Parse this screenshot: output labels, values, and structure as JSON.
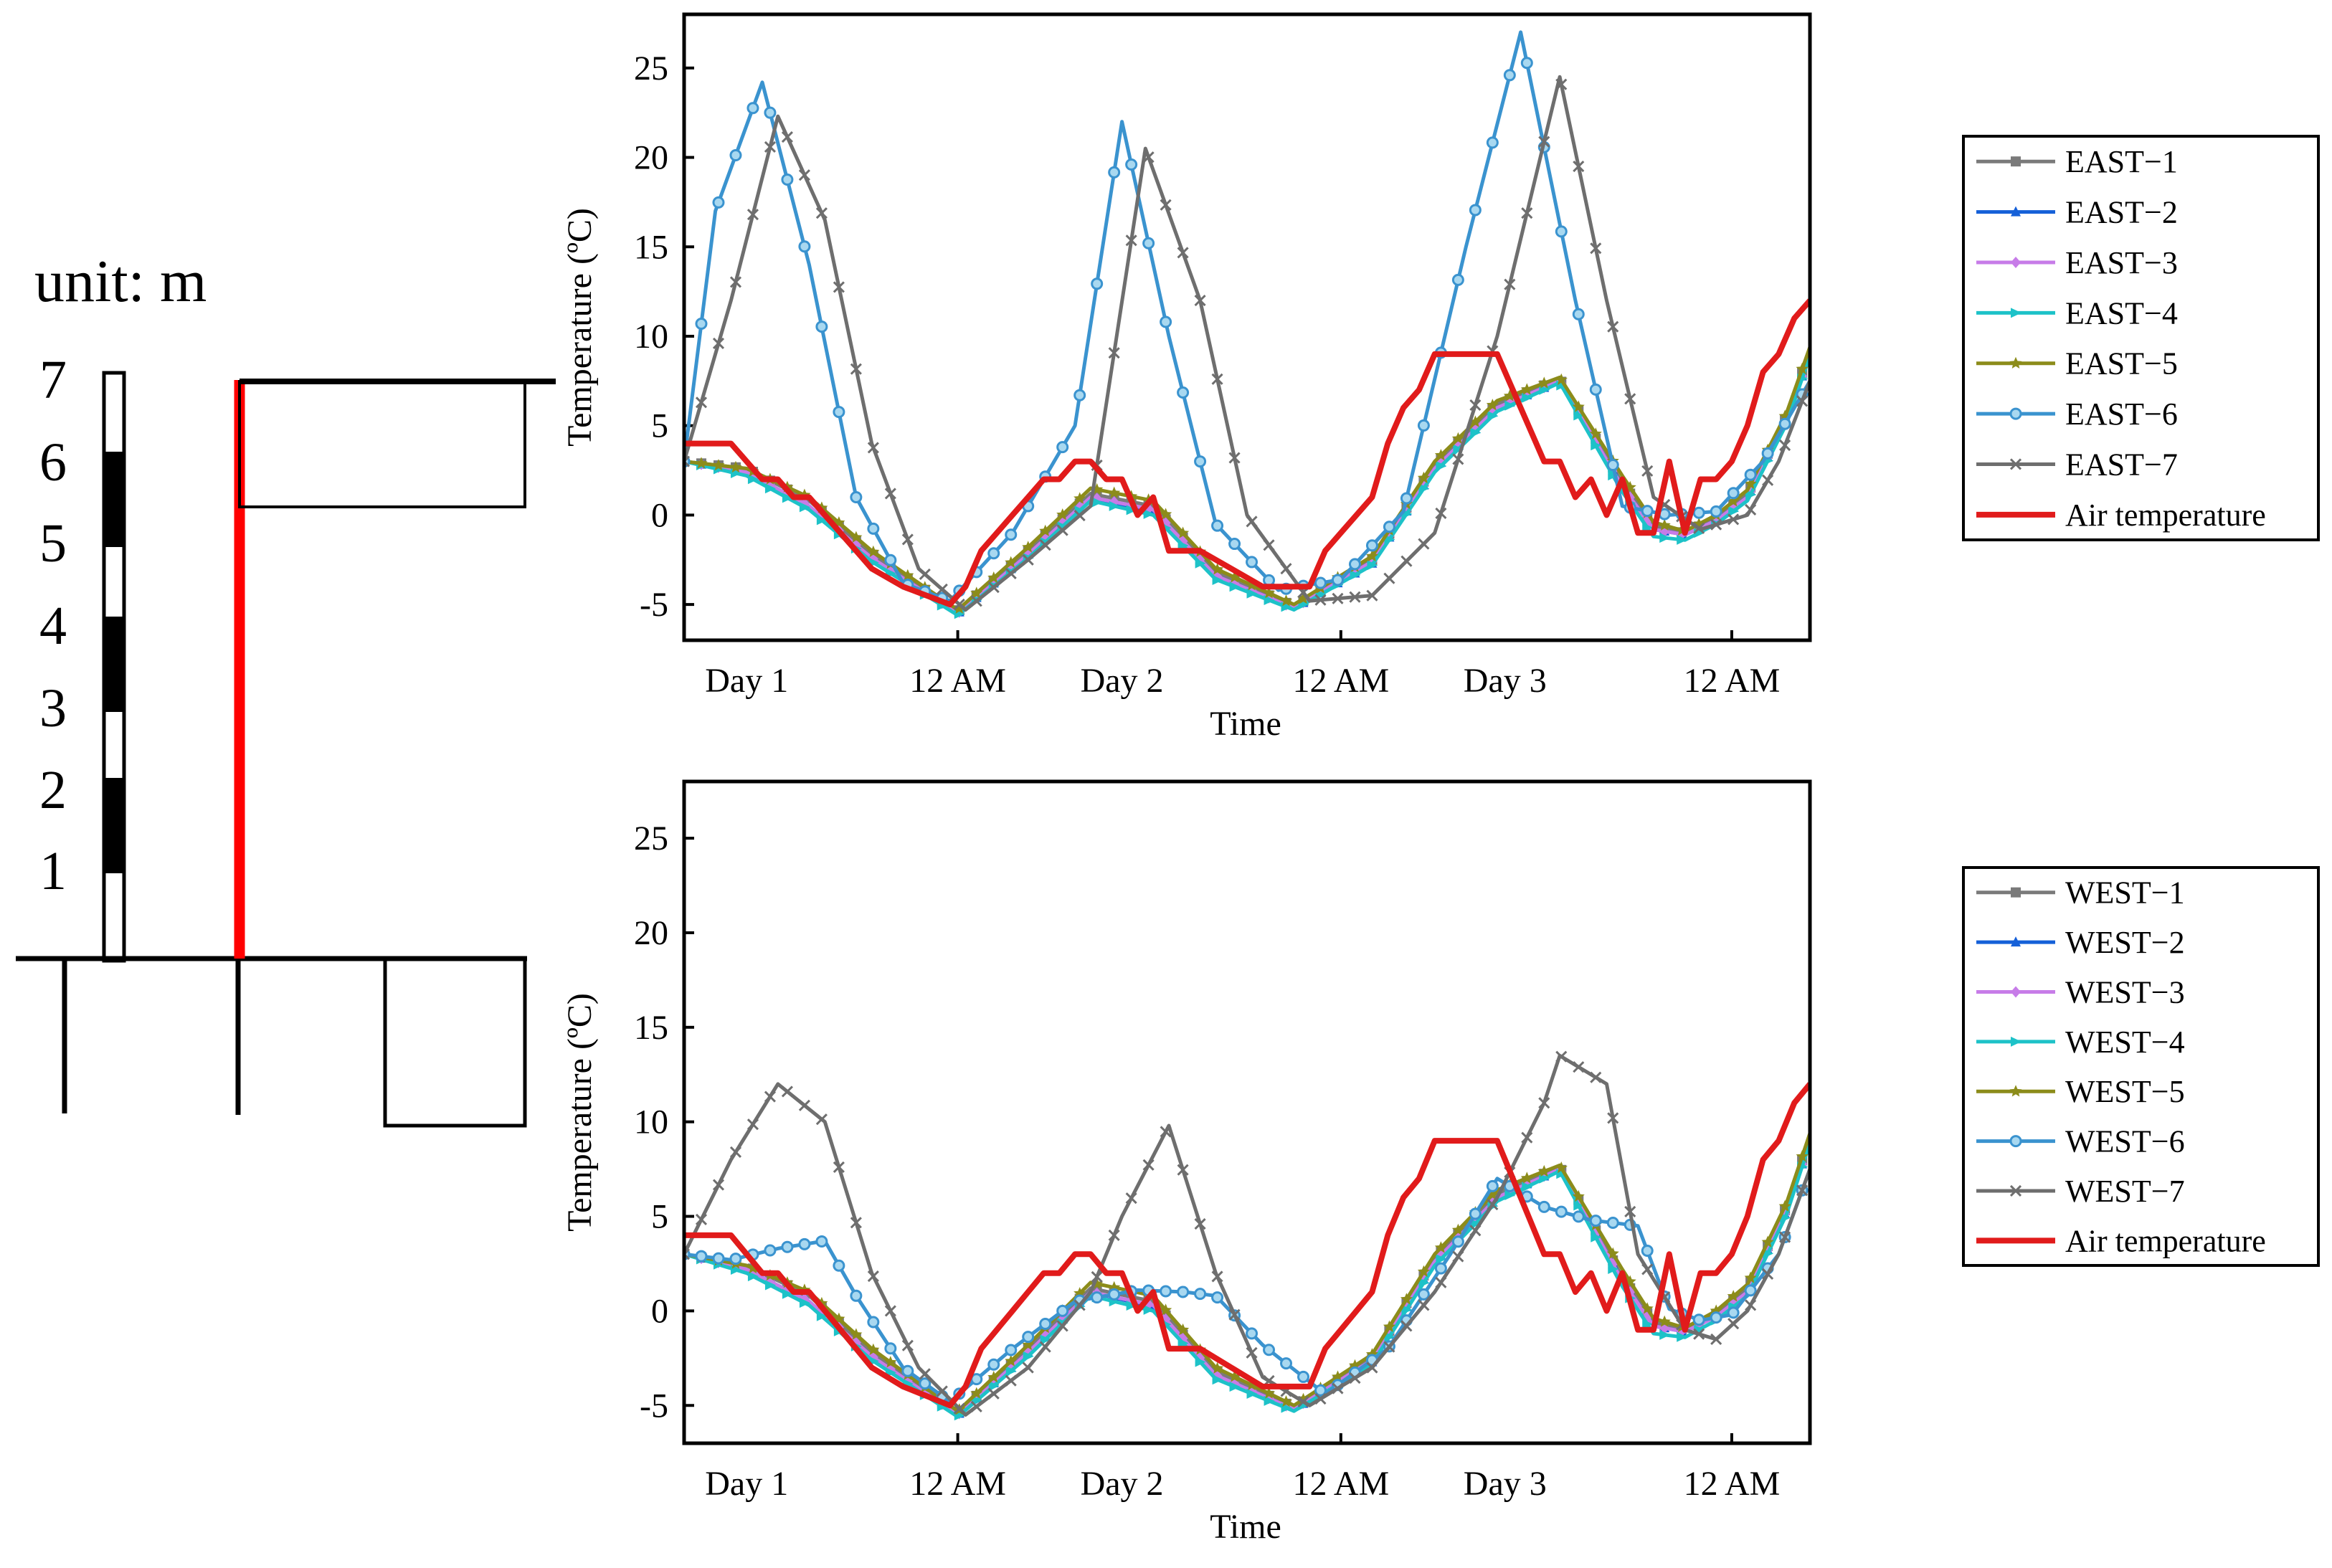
{
  "diagram": {
    "unit_label": "unit: m",
    "scale_labels": [
      "7",
      "6",
      "5",
      "4",
      "3",
      "2",
      "1"
    ]
  },
  "chart_data": [
    {
      "type": "line",
      "id": "east",
      "xlabel": "Time",
      "ylabel": "Temperature (ºC)",
      "xlim": [
        0,
        72
      ],
      "ylim": [
        -7,
        28
      ],
      "yticks": [
        -5,
        0,
        5,
        10,
        15,
        20,
        25
      ],
      "x_ticks": [
        {
          "x": 4,
          "label": "Day 1",
          "color": "#1f1fe0"
        },
        {
          "x": 17.5,
          "label": "12 AM",
          "color": "#000000"
        },
        {
          "x": 28,
          "label": "Day 2",
          "color": "#1f1fe0"
        },
        {
          "x": 42,
          "label": "12 AM",
          "color": "#000000"
        },
        {
          "x": 52.5,
          "label": "Day 3",
          "color": "#1f1fe0"
        },
        {
          "x": 67,
          "label": "12 AM",
          "color": "#000000"
        }
      ],
      "series": [
        {
          "name": "EAST−1",
          "color": "#7a7a7a",
          "marker": "square",
          "x": [
            0,
            4,
            8,
            12,
            17.5,
            22,
            26,
            30,
            34,
            39,
            44,
            48,
            52,
            56,
            60,
            62,
            64,
            66,
            68,
            70.5,
            72
          ],
          "y": [
            3,
            2.6,
            0.8,
            -2.2,
            -5.4,
            -2,
            1.2,
            0.5,
            -3.2,
            -5.1,
            -2.5,
            2.8,
            6.2,
            7.6,
            1.8,
            -0.6,
            -1,
            -0.2,
            1.2,
            5.5,
            9.2
          ]
        },
        {
          "name": "EAST−2",
          "color": "#1560d8",
          "marker": "triangle",
          "x": [
            0,
            4,
            8,
            12,
            17.5,
            22,
            26,
            30,
            34,
            39,
            44,
            48,
            52,
            56,
            60,
            62,
            64,
            66,
            68,
            70.5,
            72
          ],
          "y": [
            3,
            2.4,
            0.5,
            -2.5,
            -5.5,
            -2.2,
            1,
            0.2,
            -3.4,
            -5.2,
            -2.7,
            2.6,
            6,
            7.5,
            1.6,
            -0.8,
            -1.1,
            -0.3,
            1,
            5.3,
            9
          ]
        },
        {
          "name": "EAST−3",
          "color": "#c77ce8",
          "marker": "diamond",
          "x": [
            0,
            4,
            8,
            12,
            17.5,
            22,
            26,
            30,
            34,
            39,
            44,
            48,
            52,
            56,
            60,
            62,
            64,
            66,
            68,
            70.5,
            72
          ],
          "y": [
            3,
            2.4,
            0.5,
            -2.4,
            -5.5,
            -2.2,
            1,
            0.3,
            -3.4,
            -5.2,
            -2.6,
            2.6,
            6,
            7.5,
            1.6,
            -0.8,
            -1.1,
            -0.3,
            1,
            5.3,
            9
          ]
        },
        {
          "name": "EAST−4",
          "color": "#1dc2c8",
          "marker": "tri-right",
          "x": [
            0,
            4,
            8,
            12,
            17.5,
            22,
            26,
            30,
            34,
            39,
            44,
            48,
            52,
            56,
            60,
            62,
            64,
            66,
            68,
            70.5,
            72
          ],
          "y": [
            3,
            2.2,
            0.3,
            -2.6,
            -5.6,
            -2.4,
            0.8,
            0,
            -3.6,
            -5.3,
            -2.8,
            2.4,
            5.8,
            7.4,
            1.3,
            -1.2,
            -1.4,
            -0.5,
            0.8,
            5.1,
            8.9
          ]
        },
        {
          "name": "EAST−5",
          "color": "#8c8c1a",
          "marker": "star",
          "x": [
            0,
            4,
            8,
            12,
            17.5,
            22,
            26,
            30,
            34,
            39,
            44,
            48,
            52,
            56,
            60,
            62,
            64,
            66,
            68,
            70.5,
            72
          ],
          "y": [
            3,
            2.6,
            1,
            -2,
            -5.3,
            -1.8,
            1.5,
            0.8,
            -3,
            -5,
            -2.3,
            3,
            6.4,
            7.7,
            2.2,
            -0.4,
            -0.9,
            0,
            1.4,
            5.7,
            9.4
          ]
        },
        {
          "name": "EAST−6",
          "color": "#3a93cf",
          "marker": "circle",
          "x": [
            0,
            2,
            5,
            8,
            11,
            14,
            17,
            21,
            25,
            28,
            31,
            34,
            38,
            42,
            46,
            50,
            53.5,
            57,
            60,
            63,
            66,
            69,
            72
          ],
          "y": [
            3,
            17,
            24.2,
            14,
            1,
            -3.8,
            -4.8,
            -1,
            5,
            22,
            10,
            -0.5,
            -4.2,
            -3.6,
            0.2,
            15,
            27,
            12,
            0.5,
            0,
            0.2,
            3,
            7.5
          ]
        },
        {
          "name": "EAST−7",
          "color": "#6e6e6e",
          "marker": "x",
          "x": [
            0,
            3,
            6,
            9,
            12,
            15,
            18,
            22,
            26,
            29.5,
            33,
            36,
            40,
            44,
            48,
            52,
            56,
            59,
            62,
            65,
            68,
            70,
            72
          ],
          "y": [
            3,
            12,
            22.3,
            16.5,
            4,
            -3,
            -5.3,
            -2.5,
            0.5,
            20.5,
            12,
            0,
            -4.8,
            -4.5,
            -1,
            10,
            24.5,
            12,
            1,
            -0.8,
            0,
            3,
            7.5
          ]
        },
        {
          "name": "Air temperature",
          "color": "#e11b1b",
          "marker": "none",
          "thick": true,
          "x": [
            0,
            3,
            4,
            5,
            6,
            7,
            8,
            11,
            12,
            14,
            17,
            18,
            19,
            21,
            22,
            23,
            24,
            25,
            26,
            27,
            28,
            29,
            30,
            31,
            33,
            35,
            37,
            38,
            39,
            40,
            41,
            42,
            43,
            44,
            45,
            46,
            47,
            48,
            49,
            50,
            51,
            52,
            53,
            54,
            55,
            56,
            57,
            58,
            59,
            60,
            61,
            62,
            63,
            64,
            65,
            66,
            67,
            68,
            69,
            70,
            71,
            72
          ],
          "y": [
            4,
            4,
            3,
            2,
            2,
            1,
            1,
            -2,
            -3,
            -4,
            -5,
            -4,
            -2,
            0,
            1,
            2,
            2,
            3,
            3,
            2,
            2,
            0,
            1,
            -2,
            -2,
            -3,
            -4,
            -4,
            -4,
            -4,
            -2,
            -1,
            0,
            1,
            4,
            6,
            7,
            9,
            9,
            9,
            9,
            9,
            7,
            5,
            3,
            3,
            1,
            2,
            0,
            2,
            -1,
            -1,
            3,
            -1,
            2,
            2,
            3,
            5,
            8,
            9,
            11,
            12
          ]
        }
      ],
      "legend": {
        "position": "right"
      }
    },
    {
      "type": "line",
      "id": "west",
      "xlabel": "Time",
      "ylabel": "Temperature (ºC)",
      "xlim": [
        0,
        72
      ],
      "ylim": [
        -7,
        28
      ],
      "yticks": [
        -5,
        0,
        5,
        10,
        15,
        20,
        25
      ],
      "x_ticks": [
        {
          "x": 4,
          "label": "Day 1",
          "color": "#1f1fe0"
        },
        {
          "x": 17.5,
          "label": "12 AM",
          "color": "#000000"
        },
        {
          "x": 28,
          "label": "Day 2",
          "color": "#1f1fe0"
        },
        {
          "x": 42,
          "label": "12 AM",
          "color": "#000000"
        },
        {
          "x": 52.5,
          "label": "Day 3",
          "color": "#1f1fe0"
        },
        {
          "x": 67,
          "label": "12 AM",
          "color": "#000000"
        }
      ],
      "series": [
        {
          "name": "WEST−1",
          "color": "#7a7a7a",
          "marker": "square",
          "x": [
            0,
            4,
            8,
            12,
            17.5,
            22,
            26,
            30,
            34,
            39,
            44,
            48,
            52,
            56,
            60,
            62,
            64,
            66,
            68,
            70.5,
            72
          ],
          "y": [
            3,
            2.4,
            0.8,
            -2.2,
            -5.4,
            -2,
            1.2,
            0.5,
            -3.2,
            -5.1,
            -2.5,
            2.8,
            6.2,
            7.6,
            1.8,
            -0.6,
            -1,
            -0.2,
            1.2,
            5.5,
            9.2
          ]
        },
        {
          "name": "WEST−2",
          "color": "#1560d8",
          "marker": "triangle",
          "x": [
            0,
            4,
            8,
            12,
            17.5,
            22,
            26,
            30,
            34,
            39,
            44,
            48,
            52,
            56,
            60,
            62,
            64,
            66,
            68,
            70.5,
            72
          ],
          "y": [
            3,
            2.2,
            0.5,
            -2.5,
            -5.5,
            -2.2,
            1,
            0.2,
            -3.4,
            -5.2,
            -2.7,
            2.6,
            6,
            7.5,
            1.6,
            -0.8,
            -1.1,
            -0.3,
            1,
            5.3,
            9
          ]
        },
        {
          "name": "WEST−3",
          "color": "#c77ce8",
          "marker": "diamond",
          "x": [
            0,
            4,
            8,
            12,
            17.5,
            22,
            26,
            30,
            34,
            39,
            44,
            48,
            52,
            56,
            60,
            62,
            64,
            66,
            68,
            70.5,
            72
          ],
          "y": [
            3,
            2.2,
            0.5,
            -2.4,
            -5.5,
            -2.2,
            1,
            0.3,
            -3.4,
            -5.2,
            -2.6,
            2.6,
            6,
            7.5,
            1.6,
            -0.8,
            -1.1,
            -0.3,
            1,
            5.3,
            9
          ]
        },
        {
          "name": "WEST−4",
          "color": "#1dc2c8",
          "marker": "tri-right",
          "x": [
            0,
            4,
            8,
            12,
            17.5,
            22,
            26,
            30,
            34,
            39,
            44,
            48,
            52,
            56,
            60,
            62,
            64,
            66,
            68,
            70.5,
            72
          ],
          "y": [
            3,
            2,
            0.3,
            -2.6,
            -5.6,
            -2.4,
            0.8,
            0,
            -3.6,
            -5.3,
            -2.8,
            2.4,
            5.8,
            7.4,
            1.3,
            -1.2,
            -1.4,
            -0.5,
            0.8,
            5.1,
            8.9
          ]
        },
        {
          "name": "WEST−5",
          "color": "#8c8c1a",
          "marker": "star",
          "x": [
            0,
            4,
            8,
            12,
            17.5,
            22,
            26,
            30,
            34,
            39,
            44,
            48,
            52,
            56,
            60,
            62,
            64,
            66,
            68,
            70.5,
            72
          ],
          "y": [
            3,
            2.4,
            1,
            -2,
            -5.3,
            -1.8,
            1.5,
            0.8,
            -3,
            -5,
            -2.3,
            3,
            6.4,
            7.7,
            2.2,
            -0.4,
            -0.9,
            0,
            1.4,
            5.7,
            9.4
          ]
        },
        {
          "name": "WEST−6",
          "color": "#3a93cf",
          "marker": "circle",
          "x": [
            0,
            3,
            6,
            9,
            11,
            14,
            17,
            21,
            25,
            29,
            32,
            34,
            37,
            41,
            45,
            49,
            52,
            55,
            58,
            61,
            63,
            65,
            67,
            70,
            72
          ],
          "y": [
            3,
            2.7,
            3.3,
            3.7,
            0.8,
            -3,
            -4.8,
            -2,
            0.5,
            1.1,
            1,
            0.8,
            -1.8,
            -4.4,
            -2,
            3,
            7,
            5.5,
            4.8,
            4.5,
            0.1,
            -0.5,
            -0.2,
            3,
            7.5
          ]
        },
        {
          "name": "WEST−7",
          "color": "#6e6e6e",
          "marker": "x",
          "x": [
            0,
            3,
            6,
            9,
            12,
            15,
            18,
            22,
            26,
            28,
            31,
            34,
            37,
            40,
            44,
            48,
            52,
            55,
            56,
            59,
            61,
            64,
            66,
            68,
            70,
            72
          ],
          "y": [
            3,
            8,
            12,
            10,
            2,
            -3,
            -5.5,
            -3,
            1,
            5,
            9.8,
            2,
            -3.5,
            -5,
            -3,
            1,
            6,
            11,
            13.5,
            12,
            3,
            -1,
            -1.5,
            0,
            3,
            7.5
          ]
        },
        {
          "name": "Air temperature",
          "color": "#e11b1b",
          "marker": "none",
          "thick": true,
          "x": [
            0,
            3,
            4,
            5,
            6,
            7,
            8,
            11,
            12,
            14,
            17,
            18,
            19,
            21,
            22,
            23,
            24,
            25,
            26,
            27,
            28,
            29,
            30,
            31,
            33,
            35,
            37,
            38,
            39,
            40,
            41,
            42,
            43,
            44,
            45,
            46,
            47,
            48,
            49,
            50,
            51,
            52,
            53,
            54,
            55,
            56,
            57,
            58,
            59,
            60,
            61,
            62,
            63,
            64,
            65,
            66,
            67,
            68,
            69,
            70,
            71,
            72
          ],
          "y": [
            4,
            4,
            3,
            2,
            2,
            1,
            1,
            -2,
            -3,
            -4,
            -5,
            -4,
            -2,
            0,
            1,
            2,
            2,
            3,
            3,
            2,
            2,
            0,
            1,
            -2,
            -2,
            -3,
            -4,
            -4,
            -4,
            -4,
            -2,
            -1,
            0,
            1,
            4,
            6,
            7,
            9,
            9,
            9,
            9,
            9,
            7,
            5,
            3,
            3,
            1,
            2,
            0,
            2,
            -1,
            -1,
            3,
            -1,
            2,
            2,
            3,
            5,
            8,
            9,
            11,
            12
          ]
        }
      ],
      "legend": {
        "position": "right"
      }
    }
  ]
}
